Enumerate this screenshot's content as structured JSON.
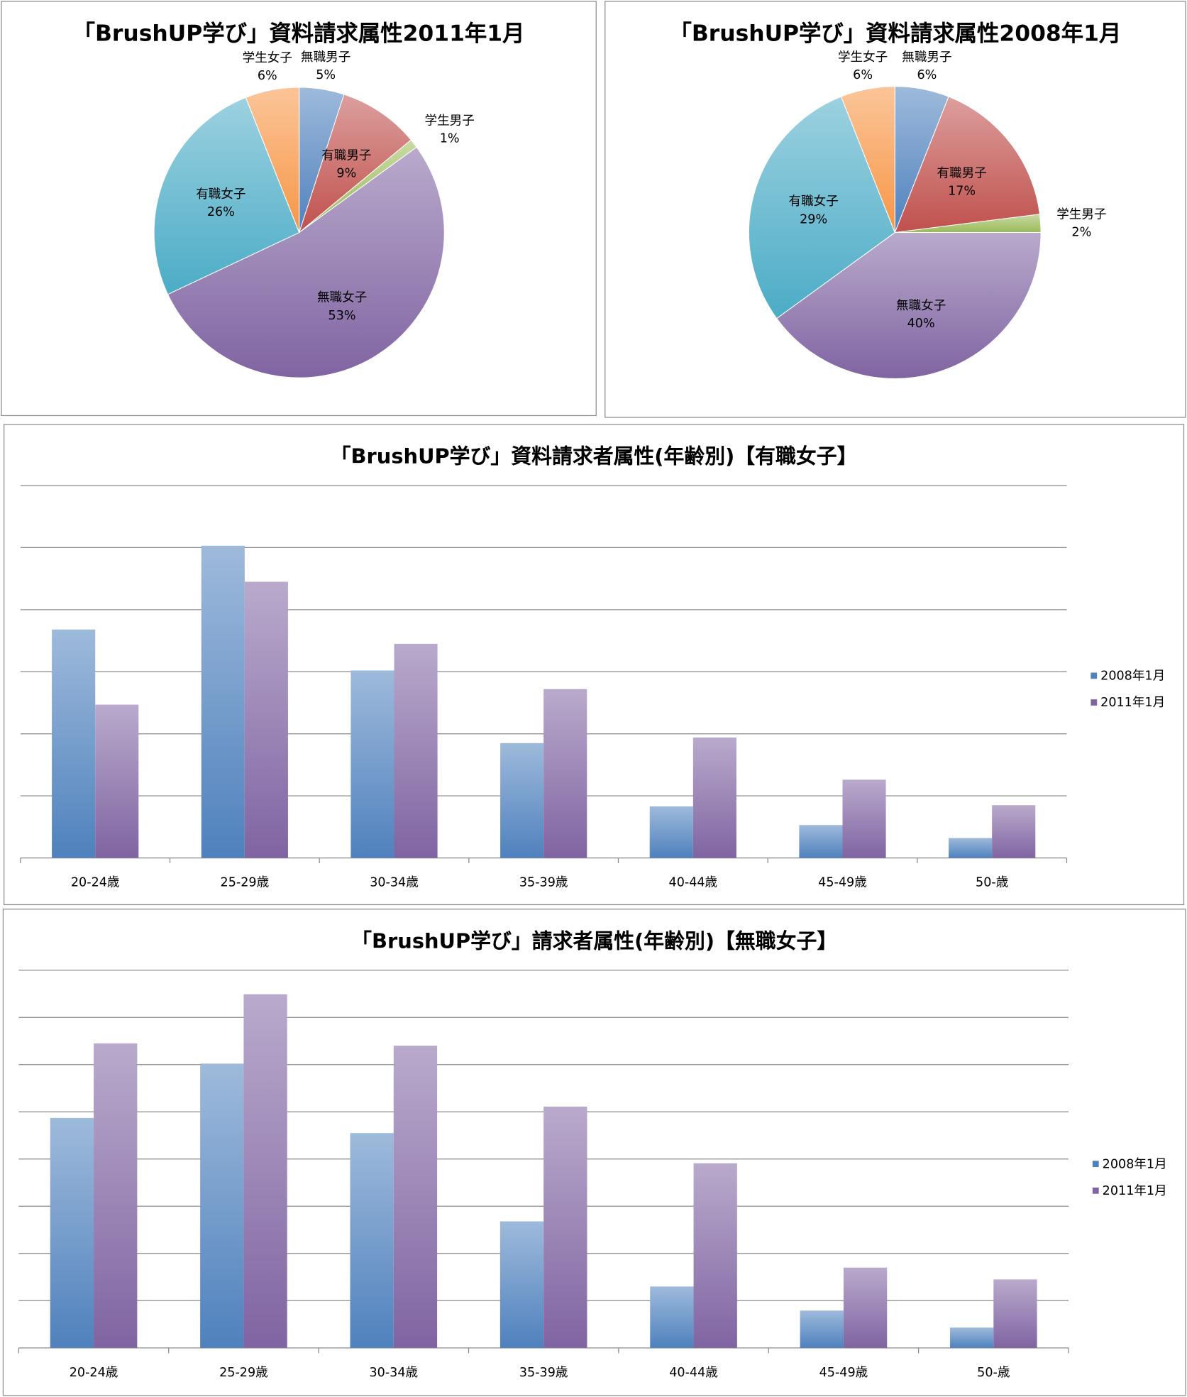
{
  "chart_data": [
    {
      "type": "pie",
      "title": "「BrushUP学び」資料請求属性2011年1月",
      "slices": [
        {
          "label": "無職男子",
          "value": 5
        },
        {
          "label": "有職男子",
          "value": 9
        },
        {
          "label": "学生男子",
          "value": 1
        },
        {
          "label": "無職女子",
          "value": 53
        },
        {
          "label": "有職女子",
          "value": 26
        },
        {
          "label": "学生女子",
          "value": 6
        }
      ]
    },
    {
      "type": "pie",
      "title": "「BrushUP学び」資料請求属性2008年1月",
      "slices": [
        {
          "label": "無職男子",
          "value": 6
        },
        {
          "label": "有職男子",
          "value": 17
        },
        {
          "label": "学生男子",
          "value": 2
        },
        {
          "label": "無職女子",
          "value": 40
        },
        {
          "label": "有職女子",
          "value": 29
        },
        {
          "label": "学生女子",
          "value": 6
        }
      ]
    },
    {
      "type": "bar",
      "title": "「BrushUP学び」資料請求者属性(年齢別)【有職女子】",
      "categories": [
        "20-24歳",
        "25-29歳",
        "30-34歳",
        "35-39歳",
        "40-44歳",
        "45-49歳",
        "50-歳"
      ],
      "series": [
        {
          "name": "2008年1月",
          "values": [
            3.68,
            5.03,
            3.02,
            1.85,
            0.83,
            0.53,
            0.32
          ]
        },
        {
          "name": "2011年1月",
          "values": [
            2.47,
            4.45,
            3.45,
            2.72,
            1.94,
            1.26,
            0.85
          ]
        }
      ],
      "ylim": [
        0,
        6
      ],
      "grid": true,
      "legend": "right",
      "ylabel": "",
      "xlabel": ""
    },
    {
      "type": "bar",
      "title": "「BrushUP学び」請求者属性(年齢別)【無職女子】",
      "categories": [
        "20-24歳",
        "25-29歳",
        "30-34歳",
        "35-39歳",
        "40-44歳",
        "45-49歳",
        "50-歳"
      ],
      "series": [
        {
          "name": "2008年1月",
          "values": [
            4.87,
            6.02,
            4.55,
            2.68,
            1.3,
            0.79,
            0.43
          ]
        },
        {
          "name": "2011年1月",
          "values": [
            6.45,
            7.49,
            6.4,
            5.11,
            3.91,
            1.7,
            1.45
          ]
        }
      ],
      "ylim": [
        0,
        8
      ],
      "grid": true,
      "legend": "right",
      "ylabel": "",
      "xlabel": ""
    }
  ],
  "colors": {
    "無職男子": "#4f81bd",
    "有職男子": "#c0504d",
    "学生男子": "#9bbb59",
    "無職女子": "#8064a2",
    "有職女子": "#4bacc6",
    "学生女子": "#f79646",
    "2008年1月": "#4f81bd",
    "2011年1月": "#8064a2"
  }
}
